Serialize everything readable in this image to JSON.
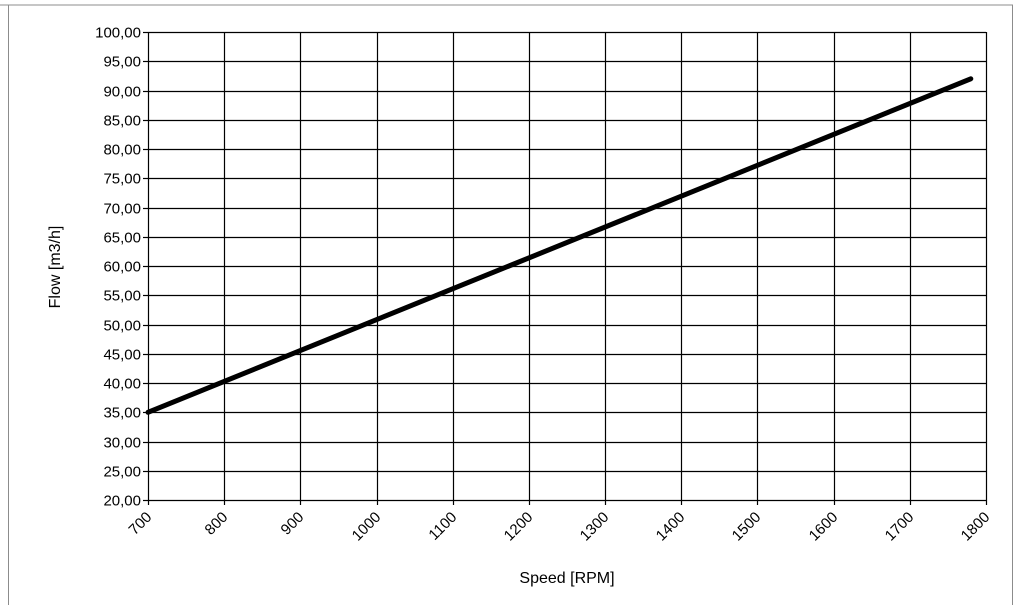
{
  "chart_data": {
    "type": "line",
    "title": "",
    "xlabel": "Speed  [RPM]",
    "ylabel": "Flow [m3/h]",
    "xlim": [
      700,
      1800
    ],
    "ylim": [
      20,
      100
    ],
    "x_ticks": [
      700,
      800,
      900,
      1000,
      1100,
      1200,
      1300,
      1400,
      1500,
      1600,
      1700,
      1800
    ],
    "y_ticks": [
      20,
      25,
      30,
      35,
      40,
      45,
      50,
      55,
      60,
      65,
      70,
      75,
      80,
      85,
      90,
      95,
      100
    ],
    "x_tick_labels": [
      "700",
      "800",
      "900",
      "1000",
      "1100",
      "1200",
      "1300",
      "1400",
      "1500",
      "1600",
      "1700",
      "1800"
    ],
    "y_tick_labels": [
      "20,00",
      "25,00",
      "30,00",
      "35,00",
      "40,00",
      "45,00",
      "50,00",
      "55,00",
      "60,00",
      "65,00",
      "70,00",
      "75,00",
      "80,00",
      "85,00",
      "90,00",
      "95,00",
      "100,00"
    ],
    "grid": true,
    "legend": "none",
    "series": [
      {
        "color": "#000000",
        "x": [
          700,
          1780
        ],
        "y": [
          35.0,
          92.0
        ]
      }
    ]
  }
}
